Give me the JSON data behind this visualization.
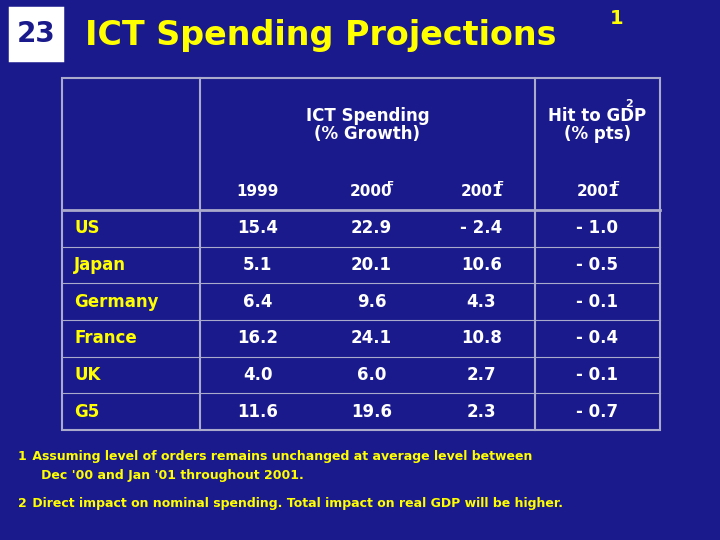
{
  "bg_color": "#1a1a8c",
  "title": "ICT Spending Projections",
  "title_color": "#ffff00",
  "slide_number": "23",
  "header_text_color": "#ffff00",
  "data_color": "#ffffff",
  "rows": [
    {
      "label": "US",
      "v1999": "15.4",
      "v2000": "22.9",
      "v2001": "- 2.4",
      "gdp": "- 1.0"
    },
    {
      "label": "Japan",
      "v1999": "5.1",
      "v2000": "20.1",
      "v2001": "10.6",
      "gdp": "- 0.5"
    },
    {
      "label": "Germany",
      "v1999": "6.4",
      "v2000": "9.6",
      "v2001": "4.3",
      "gdp": "- 0.1"
    },
    {
      "label": "France",
      "v1999": "16.2",
      "v2000": "24.1",
      "v2001": "10.8",
      "gdp": "- 0.4"
    },
    {
      "label": "UK",
      "v1999": "4.0",
      "v2000": "6.0",
      "v2001": "2.7",
      "gdp": "- 0.1"
    },
    {
      "label": "G5",
      "v1999": "11.6",
      "v2000": "19.6",
      "v2001": "2.3",
      "gdp": "- 0.7"
    }
  ],
  "footnote1_super": "1",
  "footnote1_text": " Assuming level of orders remains unchanged at average level between\n   Dec '00 and Jan '01 throughout 2001.",
  "footnote2_super": "2",
  "footnote2_text": " Direct impact on nominal spending. Total impact on real GDP will be higher.",
  "border_color": "#aaaacc",
  "col_divider_color": "#aaaacc"
}
